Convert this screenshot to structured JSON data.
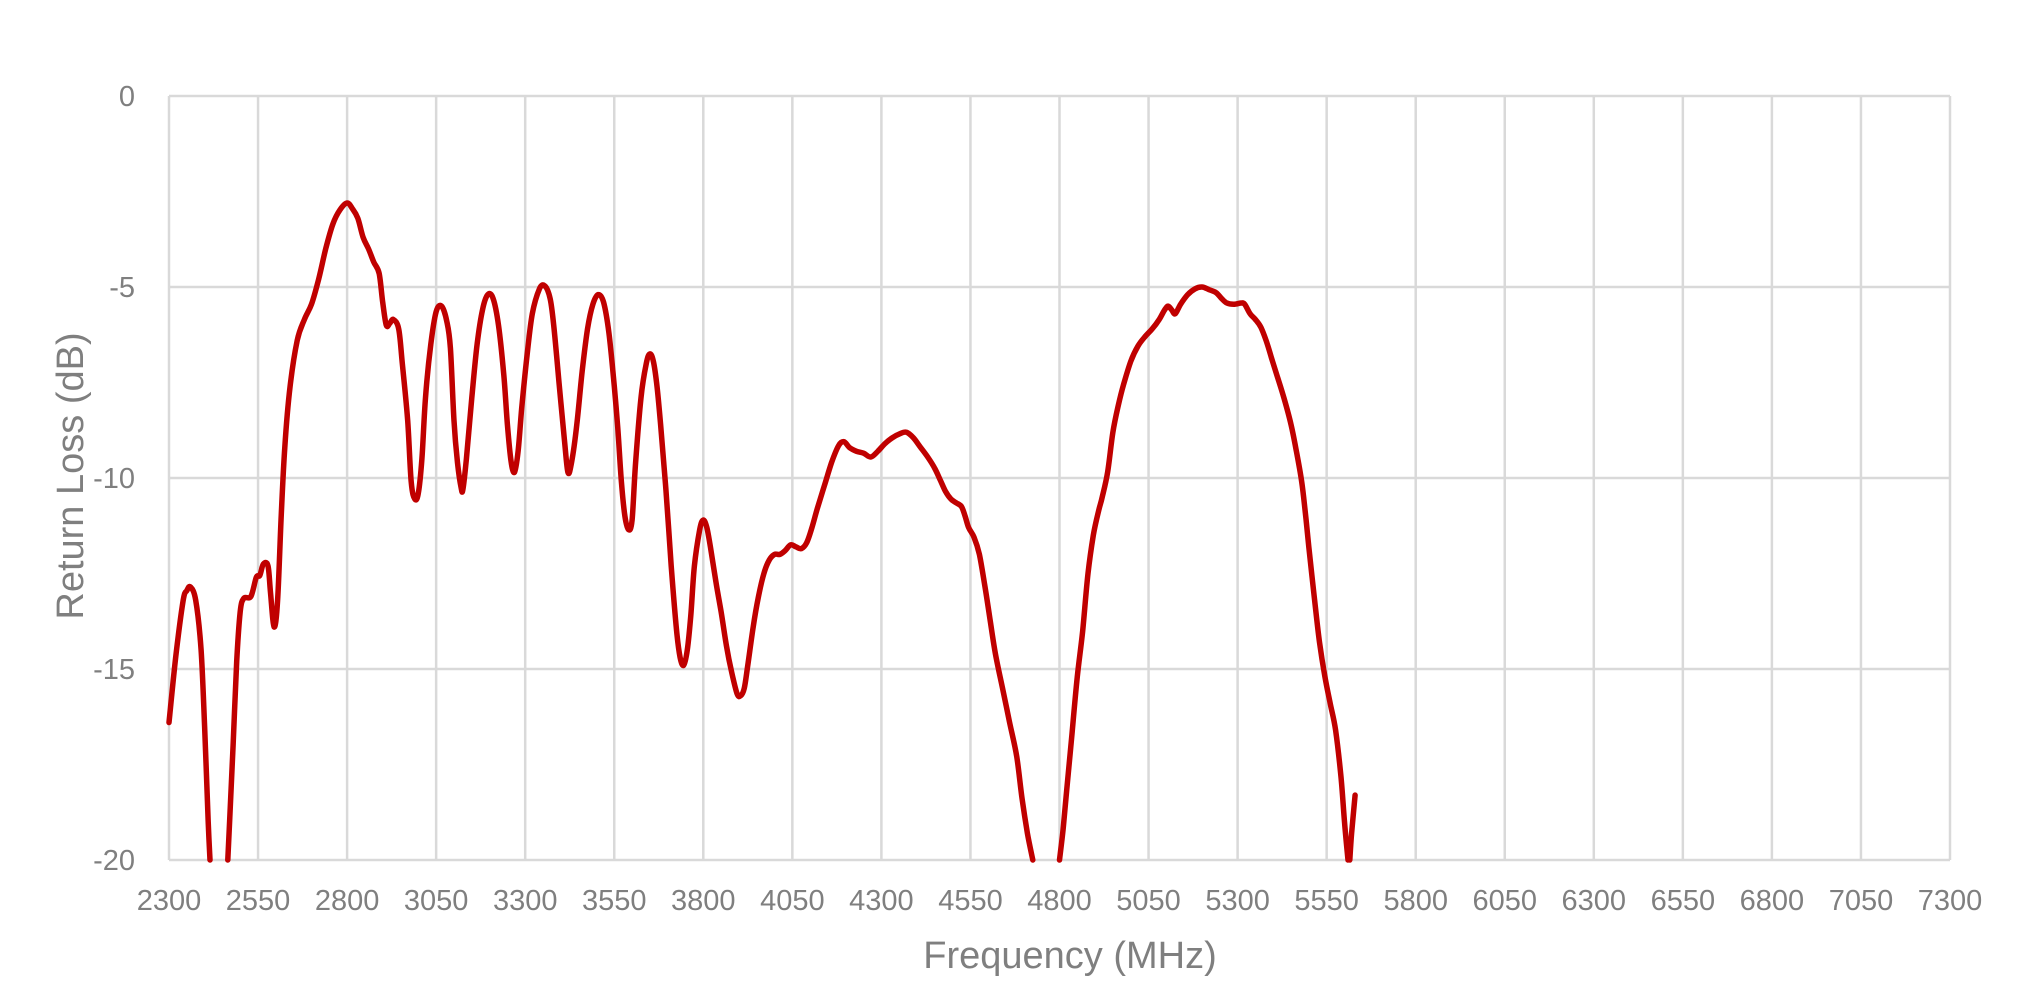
{
  "chart_data": {
    "type": "line",
    "title": "",
    "xlabel": "Frequency (MHz)",
    "ylabel": "Return Loss (dB)",
    "xlim": [
      2300,
      7300
    ],
    "ylim": [
      -20,
      0
    ],
    "x_ticks": [
      "2300",
      "2550",
      "2800",
      "3050",
      "3300",
      "3550",
      "3800",
      "4050",
      "4300",
      "4550",
      "4800",
      "5050",
      "5300",
      "5550",
      "5800",
      "6050",
      "6300",
      "6550",
      "6800",
      "7050",
      "7300"
    ],
    "y_ticks": [
      "0",
      "-5",
      "-10",
      "-15",
      "-20"
    ],
    "grid": true,
    "legend": "none",
    "colors": {
      "series": "#c00000",
      "grid": "#d9d9d9",
      "text": "#7f7f7f"
    },
    "series": [
      {
        "segments": [
          [
            [
              2300,
              -16.4
            ],
            [
              2320,
              -14.6
            ],
            [
              2340,
              -13.2
            ],
            [
              2350,
              -12.95
            ],
            [
              2360,
              -12.85
            ],
            [
              2375,
              -13.2
            ],
            [
              2390,
              -14.5
            ],
            [
              2400,
              -16.5
            ],
            [
              2410,
              -19.0
            ],
            [
              2415,
              -20.0
            ]
          ],
          [
            [
              2465,
              -20.0
            ],
            [
              2470,
              -19.0
            ],
            [
              2480,
              -17.0
            ],
            [
              2490,
              -14.8
            ],
            [
              2500,
              -13.5
            ],
            [
              2510,
              -13.15
            ],
            [
              2530,
              -13.1
            ],
            [
              2545,
              -12.6
            ],
            [
              2555,
              -12.55
            ],
            [
              2565,
              -12.25
            ],
            [
              2578,
              -12.3
            ],
            [
              2585,
              -13.0
            ],
            [
              2595,
              -13.9
            ],
            [
              2605,
              -13.2
            ],
            [
              2615,
              -11.0
            ],
            [
              2625,
              -9.2
            ],
            [
              2640,
              -7.6
            ],
            [
              2660,
              -6.4
            ],
            [
              2680,
              -5.85
            ],
            [
              2700,
              -5.45
            ],
            [
              2720,
              -4.8
            ],
            [
              2740,
              -4.0
            ],
            [
              2760,
              -3.35
            ],
            [
              2780,
              -2.98
            ],
            [
              2800,
              -2.8
            ],
            [
              2815,
              -2.95
            ],
            [
              2830,
              -3.2
            ],
            [
              2845,
              -3.7
            ],
            [
              2860,
              -4.0
            ],
            [
              2875,
              -4.35
            ],
            [
              2890,
              -4.65
            ],
            [
              2900,
              -5.4
            ],
            [
              2910,
              -6.0
            ],
            [
              2920,
              -5.95
            ],
            [
              2930,
              -5.85
            ],
            [
              2945,
              -6.1
            ],
            [
              2955,
              -7.0
            ],
            [
              2970,
              -8.5
            ],
            [
              2980,
              -10.1
            ],
            [
              2990,
              -10.55
            ],
            [
              3000,
              -10.4
            ],
            [
              3010,
              -9.5
            ],
            [
              3020,
              -7.9
            ],
            [
              3035,
              -6.5
            ],
            [
              3050,
              -5.65
            ],
            [
              3065,
              -5.5
            ],
            [
              3080,
              -5.9
            ],
            [
              3090,
              -6.6
            ],
            [
              3100,
              -8.5
            ],
            [
              3110,
              -9.6
            ],
            [
              3120,
              -10.25
            ],
            [
              3125,
              -10.3
            ],
            [
              3135,
              -9.5
            ],
            [
              3150,
              -7.9
            ],
            [
              3165,
              -6.5
            ],
            [
              3180,
              -5.6
            ],
            [
              3195,
              -5.2
            ],
            [
              3210,
              -5.3
            ],
            [
              3225,
              -6.0
            ],
            [
              3240,
              -7.3
            ],
            [
              3250,
              -8.6
            ],
            [
              3260,
              -9.55
            ],
            [
              3270,
              -9.85
            ],
            [
              3280,
              -9.3
            ],
            [
              3290,
              -8.2
            ],
            [
              3305,
              -6.8
            ],
            [
              3320,
              -5.7
            ],
            [
              3340,
              -5.05
            ],
            [
              3355,
              -4.97
            ],
            [
              3370,
              -5.3
            ],
            [
              3380,
              -6.0
            ],
            [
              3395,
              -7.5
            ],
            [
              3410,
              -9.0
            ],
            [
              3420,
              -9.85
            ],
            [
              3430,
              -9.6
            ],
            [
              3445,
              -8.6
            ],
            [
              3460,
              -7.2
            ],
            [
              3475,
              -6.1
            ],
            [
              3490,
              -5.45
            ],
            [
              3505,
              -5.2
            ],
            [
              3520,
              -5.4
            ],
            [
              3535,
              -6.2
            ],
            [
              3550,
              -7.6
            ],
            [
              3560,
              -8.7
            ],
            [
              3570,
              -10.1
            ],
            [
              3580,
              -11.0
            ],
            [
              3590,
              -11.35
            ],
            [
              3600,
              -11.1
            ],
            [
              3610,
              -9.6
            ],
            [
              3625,
              -7.9
            ],
            [
              3640,
              -7.0
            ],
            [
              3650,
              -6.75
            ],
            [
              3660,
              -6.95
            ],
            [
              3670,
              -7.6
            ],
            [
              3680,
              -8.6
            ],
            [
              3695,
              -10.3
            ],
            [
              3710,
              -12.3
            ],
            [
              3725,
              -14.0
            ],
            [
              3735,
              -14.7
            ],
            [
              3745,
              -14.9
            ],
            [
              3755,
              -14.5
            ],
            [
              3765,
              -13.6
            ],
            [
              3775,
              -12.3
            ],
            [
              3790,
              -11.35
            ],
            [
              3800,
              -11.1
            ],
            [
              3810,
              -11.3
            ],
            [
              3820,
              -11.8
            ],
            [
              3835,
              -12.7
            ],
            [
              3850,
              -13.5
            ],
            [
              3865,
              -14.4
            ],
            [
              3880,
              -15.1
            ],
            [
              3895,
              -15.65
            ],
            [
              3905,
              -15.7
            ],
            [
              3915,
              -15.5
            ],
            [
              3925,
              -14.9
            ],
            [
              3940,
              -13.9
            ],
            [
              3955,
              -13.1
            ],
            [
              3970,
              -12.5
            ],
            [
              3985,
              -12.15
            ],
            [
              4000,
              -12.0
            ],
            [
              4015,
              -12.0
            ],
            [
              4030,
              -11.9
            ],
            [
              4045,
              -11.75
            ],
            [
              4060,
              -11.8
            ],
            [
              4075,
              -11.85
            ],
            [
              4090,
              -11.7
            ],
            [
              4105,
              -11.3
            ],
            [
              4120,
              -10.8
            ],
            [
              4140,
              -10.2
            ],
            [
              4160,
              -9.6
            ],
            [
              4180,
              -9.15
            ],
            [
              4195,
              -9.05
            ],
            [
              4210,
              -9.2
            ],
            [
              4230,
              -9.3
            ],
            [
              4250,
              -9.35
            ],
            [
              4270,
              -9.45
            ],
            [
              4290,
              -9.3
            ],
            [
              4310,
              -9.1
            ],
            [
              4330,
              -8.95
            ],
            [
              4350,
              -8.85
            ],
            [
              4370,
              -8.8
            ],
            [
              4390,
              -8.95
            ],
            [
              4410,
              -9.2
            ],
            [
              4430,
              -9.45
            ],
            [
              4450,
              -9.75
            ],
            [
              4465,
              -10.05
            ],
            [
              4480,
              -10.35
            ],
            [
              4495,
              -10.55
            ],
            [
              4510,
              -10.65
            ],
            [
              4525,
              -10.75
            ],
            [
              4535,
              -11.0
            ],
            [
              4545,
              -11.3
            ],
            [
              4560,
              -11.55
            ],
            [
              4575,
              -12.0
            ],
            [
              4590,
              -12.8
            ],
            [
              4605,
              -13.7
            ],
            [
              4620,
              -14.6
            ],
            [
              4640,
              -15.5
            ],
            [
              4660,
              -16.4
            ],
            [
              4680,
              -17.3
            ],
            [
              4695,
              -18.4
            ],
            [
              4710,
              -19.3
            ],
            [
              4725,
              -20.0
            ]
          ],
          [
            [
              4800,
              -20.0
            ],
            [
              4810,
              -19.2
            ],
            [
              4820,
              -18.2
            ],
            [
              4835,
              -16.7
            ],
            [
              4850,
              -15.2
            ],
            [
              4865,
              -14.0
            ],
            [
              4880,
              -12.5
            ],
            [
              4895,
              -11.5
            ],
            [
              4910,
              -10.85
            ],
            [
              4920,
              -10.5
            ],
            [
              4935,
              -9.85
            ],
            [
              4950,
              -8.8
            ],
            [
              4965,
              -8.1
            ],
            [
              4980,
              -7.55
            ],
            [
              5000,
              -6.95
            ],
            [
              5020,
              -6.55
            ],
            [
              5040,
              -6.3
            ],
            [
              5060,
              -6.1
            ],
            [
              5080,
              -5.85
            ],
            [
              5095,
              -5.6
            ],
            [
              5105,
              -5.5
            ],
            [
              5115,
              -5.6
            ],
            [
              5125,
              -5.7
            ],
            [
              5140,
              -5.45
            ],
            [
              5160,
              -5.2
            ],
            [
              5180,
              -5.05
            ],
            [
              5200,
              -5.0
            ],
            [
              5220,
              -5.07
            ],
            [
              5240,
              -5.15
            ],
            [
              5255,
              -5.3
            ],
            [
              5270,
              -5.42
            ],
            [
              5290,
              -5.45
            ],
            [
              5310,
              -5.42
            ],
            [
              5320,
              -5.45
            ],
            [
              5335,
              -5.7
            ],
            [
              5350,
              -5.85
            ],
            [
              5365,
              -6.05
            ],
            [
              5380,
              -6.4
            ],
            [
              5395,
              -6.85
            ],
            [
              5410,
              -7.3
            ],
            [
              5430,
              -7.9
            ],
            [
              5450,
              -8.6
            ],
            [
              5465,
              -9.3
            ],
            [
              5480,
              -10.1
            ],
            [
              5490,
              -10.9
            ],
            [
              5500,
              -11.8
            ],
            [
              5515,
              -13.1
            ],
            [
              5530,
              -14.3
            ],
            [
              5545,
              -15.2
            ],
            [
              5560,
              -15.9
            ],
            [
              5575,
              -16.6
            ],
            [
              5590,
              -17.8
            ],
            [
              5600,
              -19.0
            ],
            [
              5610,
              -20.0
            ]
          ],
          [
            [
              5615,
              -20.0
            ],
            [
              5620,
              -19.3
            ],
            [
              5630,
              -18.3
            ]
          ]
        ]
      }
    ]
  }
}
